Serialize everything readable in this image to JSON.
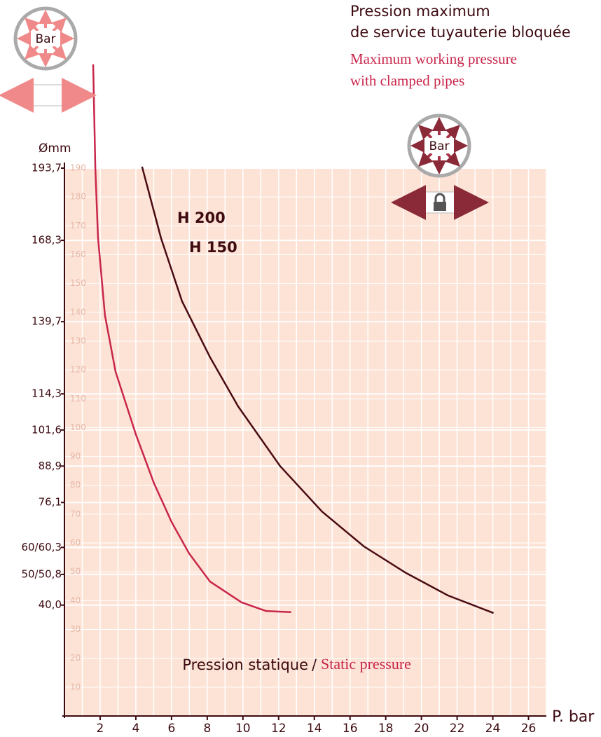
{
  "chart_data": {
    "type": "line",
    "title_lines": [
      "Pression maximum",
      "de service tuyauterie bloquée"
    ],
    "subtitle_lines": [
      "Maximum working pressure",
      "with clamped pipes"
    ],
    "x_label_fr": "Pression statique",
    "x_label_sep": "/",
    "x_label_en": "Static pressure",
    "x_unit": "P. bar",
    "y_label": "Ømm",
    "annotations": [
      "H 200",
      "H 150"
    ],
    "icon_labels": [
      "Bar",
      "Bar"
    ],
    "xlim": [
      0,
      27
    ],
    "xticks": [
      2,
      4,
      6,
      8,
      10,
      12,
      14,
      16,
      18,
      20,
      22,
      24,
      26
    ],
    "xminorticks": [
      1,
      3,
      5,
      7,
      9,
      11,
      13,
      15,
      17,
      19,
      21,
      23,
      25,
      27
    ],
    "ylim": [
      0,
      190
    ],
    "yticks": [
      10,
      20,
      30,
      40,
      50,
      60,
      70,
      80,
      90,
      100,
      110,
      120,
      130,
      140,
      150,
      160,
      170,
      180,
      190
    ],
    "y2lim": [
      1,
      193.7
    ],
    "y2ticks": [
      {
        "value": 193.7,
        "label": "193,7"
      },
      {
        "value": 168.3,
        "label": "168,3"
      },
      {
        "value": 139.7,
        "label": "139,7"
      },
      {
        "value": 114.3,
        "label": "114,3"
      },
      {
        "value": 101.6,
        "label": "101,6"
      },
      {
        "value": 88.9,
        "label": "88,9"
      },
      {
        "value": 76.1,
        "label": "76,1"
      },
      {
        "value": 60.3,
        "label": "60/60,3"
      },
      {
        "value": 50.8,
        "label": "50/50,8"
      },
      {
        "value": 40.0,
        "label": "40,0"
      }
    ],
    "grid": true,
    "background": "#fde3d6",
    "series": [
      {
        "color": "#c8264a",
        "x": [
          1.61,
          1.73,
          1.88,
          2.27,
          2.86,
          4.0,
          5.02,
          6.0,
          6.98,
          8.16,
          9.92,
          11.3,
          12.7
        ],
        "values": [
          226,
          190,
          166,
          139,
          119.5,
          97.7,
          80.7,
          67.3,
          56.4,
          46.6,
          39.4,
          36.4,
          36
        ]
      },
      {
        "color": "#4a0c14",
        "x": [
          4.35,
          5.41,
          6.59,
          8.16,
          9.73,
          12.08,
          14.43,
          16.78,
          19.14,
          21.49,
          24.04
        ],
        "values": [
          190.5,
          165.7,
          143.8,
          124.4,
          107.4,
          86.7,
          70.9,
          58.8,
          49.6,
          41.8,
          35.7
        ]
      }
    ]
  }
}
